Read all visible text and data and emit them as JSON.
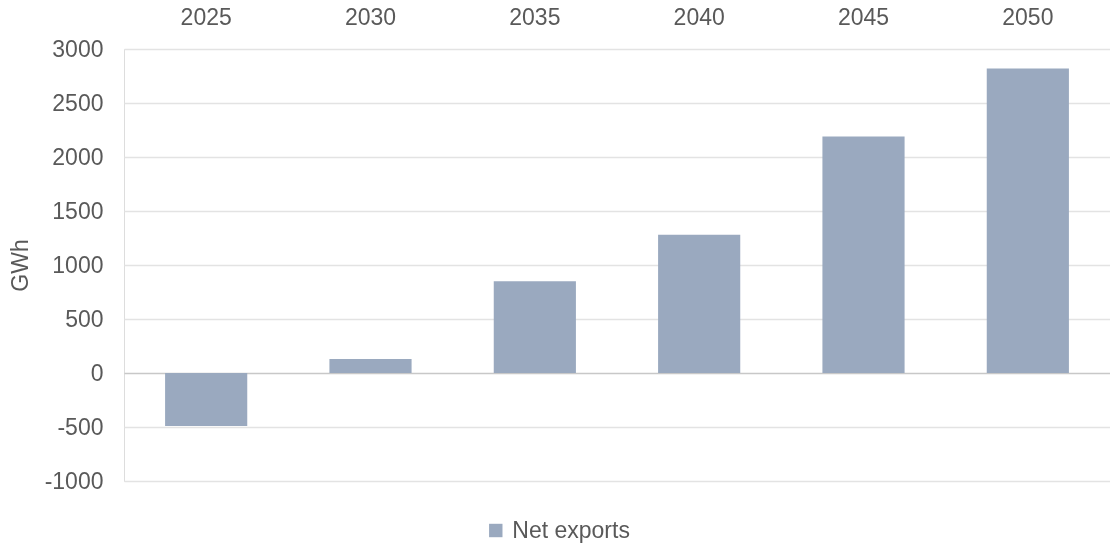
{
  "chart_data": {
    "type": "bar",
    "ylabel": "GWh",
    "categories": [
      "2025",
      "2030",
      "2035",
      "2040",
      "2045",
      "2050"
    ],
    "series": [
      {
        "name": "Net exports",
        "color": "#9aa9bf",
        "values": [
          -490,
          130,
          850,
          1280,
          2190,
          2820
        ]
      }
    ],
    "ylim": [
      -1000,
      3000
    ],
    "yticks": [
      -1000,
      -500,
      0,
      500,
      1000,
      1500,
      2000,
      2500,
      3000
    ],
    "grid": "y",
    "legend": "bottom"
  }
}
